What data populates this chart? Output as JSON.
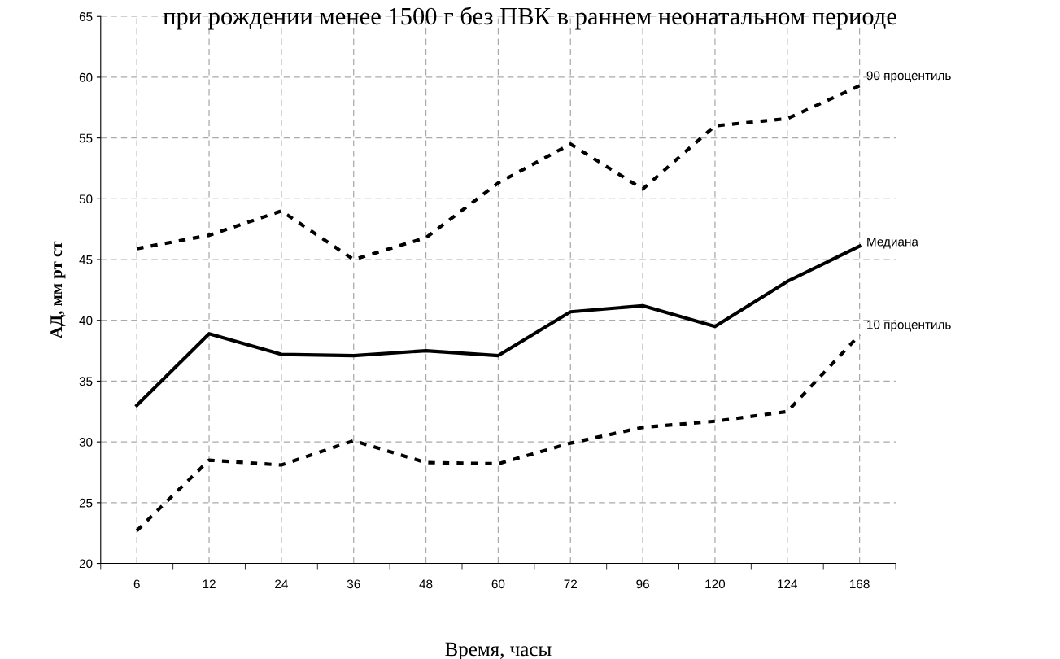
{
  "chart_data": {
    "type": "line",
    "title": "при рождении менее 1500 г без ПВК в раннем неонатальном периоде",
    "xlabel": "Время, часы",
    "ylabel": "АД, мм рт ст",
    "categories": [
      "6",
      "12",
      "24",
      "36",
      "48",
      "60",
      "72",
      "96",
      "120",
      "124",
      "168"
    ],
    "series": [
      {
        "name": "90 процентиль",
        "color": "#000000",
        "line_style": "dotted",
        "values": [
          45.9,
          47.0,
          49.0,
          45.0,
          46.8,
          51.3,
          54.5,
          50.8,
          56.0,
          56.6,
          59.3
        ]
      },
      {
        "name": "Медиана",
        "color": "#000000",
        "line_style": "solid",
        "values": [
          33.0,
          38.9,
          37.2,
          37.1,
          37.5,
          37.1,
          40.7,
          41.2,
          39.5,
          43.2,
          46.1
        ]
      },
      {
        "name": "10 процентиль",
        "color": "#000000",
        "line_style": "dotted",
        "values": [
          22.7,
          28.5,
          28.1,
          30.1,
          28.3,
          28.2,
          29.9,
          31.2,
          31.7,
          32.5,
          38.8
        ]
      }
    ],
    "ylim": [
      20,
      65
    ],
    "yticks": [
      20,
      25,
      30,
      35,
      40,
      45,
      50,
      55,
      60,
      65
    ],
    "grid": true
  }
}
